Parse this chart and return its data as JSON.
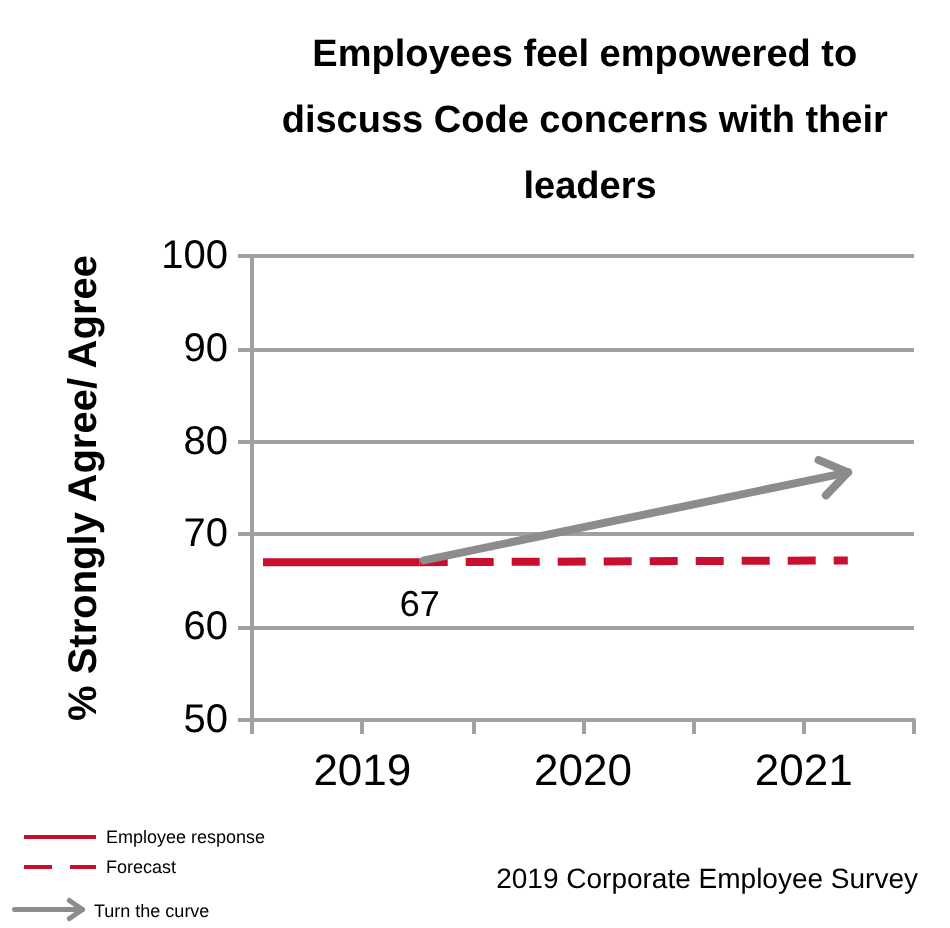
{
  "chart_data": {
    "type": "line",
    "title": "Employees feel empowered to discuss Code concerns with their leaders",
    "ylabel": "% Strongly Agree/ Agree",
    "xlim": [
      2018.5,
      2021.5
    ],
    "xticks": [
      {
        "value": 2018.5,
        "label": null
      },
      {
        "value": 2019,
        "label": "2019"
      },
      {
        "value": 2019.5,
        "label": null
      },
      {
        "value": 2020,
        "label": "2020"
      },
      {
        "value": 2020.5,
        "label": null
      },
      {
        "value": 2021,
        "label": "2021"
      },
      {
        "value": 2021.5,
        "label": null
      }
    ],
    "ylim": [
      50,
      100
    ],
    "yticks": [
      50,
      60,
      70,
      80,
      90,
      100
    ],
    "grid": "y",
    "legend": "bottom left",
    "marker": "none",
    "annotations": [
      "Turn the curve",
      "2019 Corporate Employee Survey"
    ],
    "series": [
      {
        "name": "Employee response",
        "color": "#c8102e",
        "line_style": "solid",
        "x": [
          2018.55,
          2019.26
        ],
        "values": [
          67,
          67
        ],
        "value_labels": [
          null,
          "67"
        ]
      },
      {
        "name": "Forecast",
        "color": "#c8102e",
        "line_style": "dashed",
        "x": [
          2019.26,
          2021.2
        ],
        "values": [
          67,
          67.2
        ]
      }
    ]
  }
}
